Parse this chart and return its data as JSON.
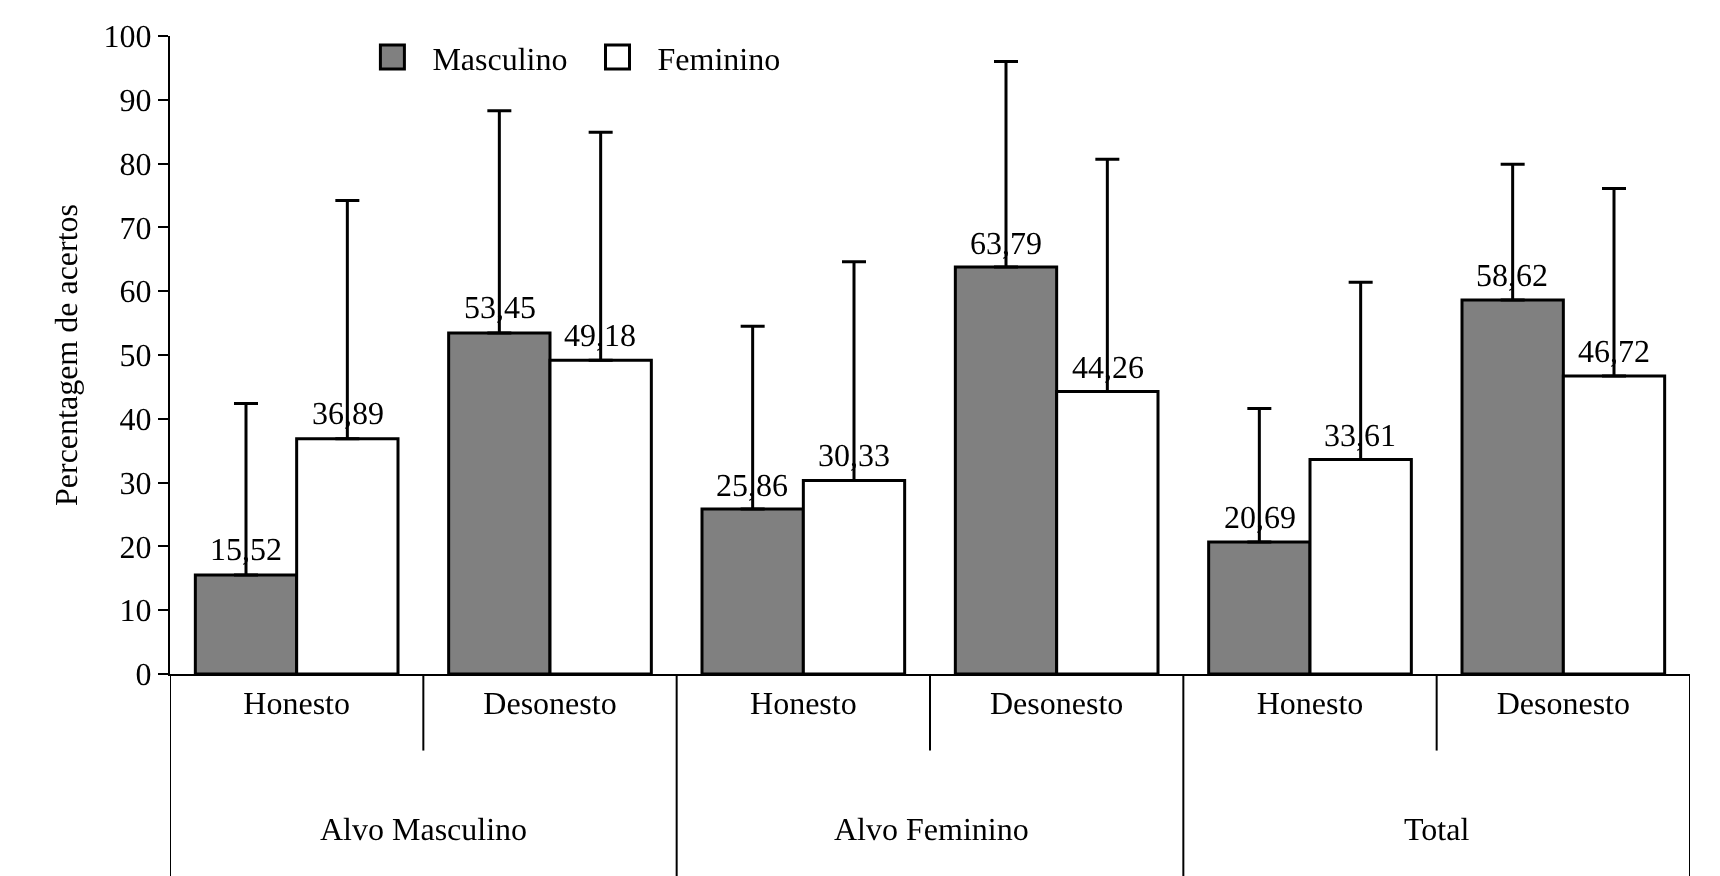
{
  "chart_data": {
    "type": "bar",
    "ylabel": "Percentagem de acertos",
    "categories": [
      "Honesto",
      "Desonesto",
      "Honesto",
      "Desonesto",
      "Honesto",
      "Desonesto"
    ],
    "annotations": [
      "Alvo Masculino",
      "Alvo Feminino",
      "Total"
    ],
    "series": [
      {
        "name": "Masculino",
        "color": "#808080",
        "values": [
          15.52,
          53.45,
          25.86,
          63.79,
          20.69,
          58.62
        ],
        "value_labels": [
          "15,52",
          "53,45",
          "25,86",
          "63,79",
          "20,69",
          "58,62"
        ],
        "errors": [
          [
            15.52,
            42.4
          ],
          [
            53.45,
            88.3
          ],
          [
            25.86,
            54.5
          ],
          [
            63.79,
            96.0
          ],
          [
            20.69,
            41.6
          ],
          [
            58.62,
            79.9
          ]
        ]
      },
      {
        "name": "Feminino",
        "color": "#ffffff",
        "values": [
          36.89,
          49.18,
          30.33,
          44.26,
          33.61,
          46.72
        ],
        "value_labels": [
          "36,89",
          "49,18",
          "30,33",
          "44,26",
          "33,61",
          "46,72"
        ],
        "errors": [
          [
            36.89,
            74.2
          ],
          [
            49.18,
            84.9
          ],
          [
            30.33,
            64.6
          ],
          [
            44.26,
            80.7
          ],
          [
            33.61,
            61.4
          ],
          [
            46.72,
            76.1
          ]
        ]
      }
    ],
    "ylim": [
      0,
      100
    ],
    "yticks": [
      0,
      10,
      20,
      30,
      40,
      50,
      60,
      70,
      80,
      90,
      100
    ],
    "grid": false,
    "legend": "top"
  }
}
